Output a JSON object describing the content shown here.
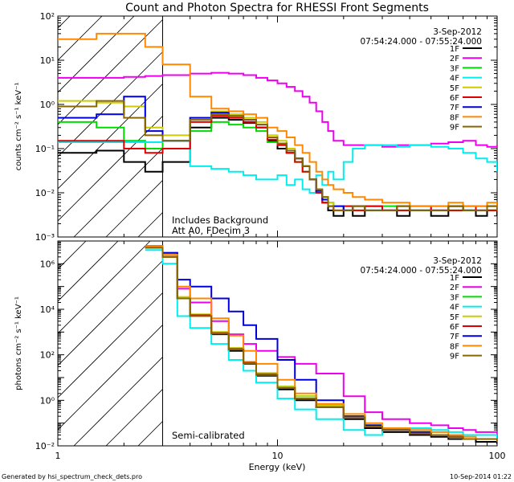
{
  "chart_data": [
    {
      "type": "line",
      "title": "Count and Photon Spectra for RHESSI Front Segments",
      "date": "3-Sep-2012",
      "time_range": "07:54:24.000 - 07:55:24.000",
      "xlabel": "",
      "ylabel": "counts cm⁻² s⁻¹ keV⁻¹",
      "xscale": "log",
      "yscale": "log",
      "xlim": [
        1,
        100
      ],
      "ylim": [
        0.001,
        100
      ],
      "xticks": [
        "1",
        "10",
        "100"
      ],
      "yticks": [
        "10⁻³",
        "10⁻²",
        "10⁻¹",
        "10⁰",
        "10¹",
        "10²"
      ],
      "annotations": [
        "Includes Background",
        "Att A0, FDecim 3"
      ],
      "shaded_region_keV": [
        1,
        3
      ],
      "legend_position": "top-right",
      "series": [
        {
          "name": "1F",
          "color": "#000000",
          "x": [
            1,
            1.5,
            2,
            2.5,
            3,
            4,
            5,
            6,
            7,
            8,
            9,
            10,
            11,
            12,
            13,
            14,
            15,
            16,
            17,
            18,
            20,
            22,
            25,
            30,
            35,
            40,
            50,
            60,
            70,
            80,
            90,
            100
          ],
          "y": [
            0.08,
            0.09,
            0.05,
            0.03,
            0.05,
            0.3,
            0.5,
            0.45,
            0.38,
            0.3,
            0.15,
            0.1,
            0.08,
            0.06,
            0.04,
            0.02,
            0.01,
            0.006,
            0.004,
            0.003,
            0.004,
            0.003,
            0.005,
            0.004,
            0.003,
            0.004,
            0.003,
            0.005,
            0.004,
            0.003,
            0.004,
            0.003
          ]
        },
        {
          "name": "2F",
          "color": "#ee00ee",
          "x": [
            1,
            1.5,
            2,
            2.5,
            3,
            4,
            5,
            6,
            7,
            8,
            9,
            10,
            11,
            12,
            13,
            14,
            15,
            16,
            17,
            18,
            20,
            22,
            25,
            30,
            35,
            40,
            50,
            60,
            70,
            80,
            90,
            100
          ],
          "y": [
            4,
            4,
            4.2,
            4.4,
            4.6,
            5,
            5.2,
            5,
            4.6,
            4,
            3.5,
            3,
            2.5,
            2,
            1.5,
            1.1,
            0.7,
            0.4,
            0.25,
            0.15,
            0.12,
            0.12,
            0.12,
            0.11,
            0.12,
            0.12,
            0.13,
            0.14,
            0.15,
            0.12,
            0.11,
            0.12
          ]
        },
        {
          "name": "3F",
          "color": "#00dd00",
          "x": [
            1,
            1.5,
            2,
            2.5,
            3,
            4,
            5,
            6,
            7,
            8,
            9,
            10,
            11,
            12,
            13,
            14,
            15,
            16,
            17,
            18,
            20,
            22,
            25,
            30,
            35,
            40,
            50,
            60,
            70,
            80,
            90,
            100
          ],
          "y": [
            0.4,
            0.3,
            0.15,
            0.1,
            0.15,
            0.25,
            0.4,
            0.35,
            0.3,
            0.25,
            0.14,
            0.12,
            0.08,
            0.05,
            0.03,
            0.02,
            0.01,
            0.008,
            0.006,
            0.005,
            0.004,
            0.005,
            0.004,
            0.005,
            0.004,
            0.004,
            0.005,
            0.004,
            0.004,
            0.005,
            0.004,
            0.004
          ]
        },
        {
          "name": "4F",
          "color": "#00eeee",
          "x": [
            1,
            1.5,
            2,
            2.5,
            3,
            4,
            5,
            6,
            7,
            8,
            9,
            10,
            11,
            12,
            13,
            14,
            15,
            16,
            17,
            18,
            20,
            22,
            25,
            30,
            35,
            40,
            50,
            60,
            70,
            80,
            90,
            100
          ],
          "y": [
            0.14,
            0.14,
            0.14,
            0.14,
            0.15,
            0.04,
            0.035,
            0.03,
            0.025,
            0.02,
            0.02,
            0.025,
            0.015,
            0.02,
            0.012,
            0.01,
            0.025,
            0.015,
            0.03,
            0.02,
            0.05,
            0.1,
            0.12,
            0.12,
            0.11,
            0.12,
            0.11,
            0.1,
            0.08,
            0.06,
            0.05,
            0.03
          ]
        },
        {
          "name": "5F",
          "color": "#cccc00",
          "x": [
            1,
            1.5,
            2,
            2.5,
            3,
            4,
            5,
            6,
            7,
            8,
            9,
            10,
            11,
            12,
            13,
            14,
            15,
            16,
            17,
            18,
            20,
            22,
            25,
            30,
            35,
            40,
            50,
            60,
            70,
            80,
            90,
            100
          ],
          "y": [
            1.2,
            1.1,
            0.9,
            0.3,
            0.2,
            0.5,
            0.7,
            0.6,
            0.5,
            0.4,
            0.2,
            0.15,
            0.1,
            0.06,
            0.04,
            0.02,
            0.012,
            0.008,
            0.006,
            0.005,
            0.005,
            0.004,
            0.005,
            0.004,
            0.005,
            0.004,
            0.004,
            0.005,
            0.004,
            0.005,
            0.004,
            0.004
          ]
        },
        {
          "name": "6F",
          "color": "#dd0000",
          "x": [
            1,
            1.5,
            2,
            2.5,
            3,
            4,
            5,
            6,
            7,
            8,
            9,
            10,
            11,
            12,
            13,
            14,
            15,
            16,
            17,
            18,
            20,
            22,
            25,
            30,
            35,
            40,
            50,
            60,
            70,
            80,
            90,
            100
          ],
          "y": [
            0.15,
            0.15,
            0.1,
            0.08,
            0.1,
            0.4,
            0.55,
            0.5,
            0.4,
            0.3,
            0.16,
            0.12,
            0.08,
            0.05,
            0.03,
            0.02,
            0.01,
            0.006,
            0.005,
            0.004,
            0.005,
            0.004,
            0.005,
            0.004,
            0.004,
            0.005,
            0.004,
            0.004,
            0.005,
            0.004,
            0.004,
            0.005
          ]
        },
        {
          "name": "7F",
          "color": "#0000dd",
          "x": [
            1,
            1.5,
            2,
            2.5,
            3,
            4,
            5,
            6,
            7,
            8,
            9,
            10,
            11,
            12,
            13,
            14,
            15,
            16,
            17,
            18,
            20,
            22,
            25,
            30,
            35,
            40,
            50,
            60,
            70,
            80,
            90,
            100
          ],
          "y": [
            0.5,
            0.6,
            1.5,
            0.25,
            0.15,
            0.5,
            0.65,
            0.55,
            0.45,
            0.35,
            0.18,
            0.13,
            0.09,
            0.06,
            0.04,
            0.02,
            0.011,
            0.007,
            0.005,
            0.005,
            0.004,
            0.005,
            0.004,
            0.004,
            0.005,
            0.004,
            0.004,
            0.005,
            0.004,
            0.004,
            0.005,
            0.004
          ]
        },
        {
          "name": "8F",
          "color": "#ff8800",
          "x": [
            1,
            1.5,
            2,
            2.5,
            3,
            4,
            5,
            6,
            7,
            8,
            9,
            10,
            11,
            12,
            13,
            14,
            15,
            16,
            17,
            18,
            20,
            22,
            25,
            30,
            35,
            40,
            50,
            60,
            70,
            80,
            90,
            100
          ],
          "y": [
            30,
            40,
            40,
            20,
            8,
            1.5,
            0.8,
            0.7,
            0.6,
            0.5,
            0.3,
            0.25,
            0.18,
            0.12,
            0.08,
            0.05,
            0.03,
            0.02,
            0.015,
            0.012,
            0.01,
            0.008,
            0.007,
            0.006,
            0.006,
            0.005,
            0.005,
            0.006,
            0.005,
            0.005,
            0.006,
            0.005
          ]
        },
        {
          "name": "9F",
          "color": "#886600",
          "x": [
            1,
            1.5,
            2,
            2.5,
            3,
            4,
            5,
            6,
            7,
            8,
            9,
            10,
            11,
            12,
            13,
            14,
            15,
            16,
            17,
            18,
            20,
            22,
            25,
            30,
            35,
            40,
            50,
            60,
            70,
            80,
            90,
            100
          ],
          "y": [
            0.9,
            1.2,
            0.5,
            0.2,
            0.15,
            0.45,
            0.6,
            0.55,
            0.45,
            0.35,
            0.18,
            0.13,
            0.09,
            0.06,
            0.04,
            0.02,
            0.012,
            0.008,
            0.005,
            0.004,
            0.004,
            0.005,
            0.004,
            0.004,
            0.005,
            0.004,
            0.004,
            0.005,
            0.004,
            0.004,
            0.005,
            0.004
          ]
        }
      ]
    },
    {
      "type": "line",
      "date": "3-Sep-2012",
      "time_range": "07:54:24.000 - 07:55:24.000",
      "xlabel": "Energy (keV)",
      "ylabel": "photons cm⁻² s⁻¹ keV⁻¹",
      "xscale": "log",
      "yscale": "log",
      "xlim": [
        1,
        100
      ],
      "ylim": [
        0.01,
        10000000
      ],
      "xticks": [
        "1",
        "10",
        "100"
      ],
      "yticks": [
        "10⁻²",
        "10⁰",
        "10²",
        "10⁴",
        "10⁶"
      ],
      "annotations": [
        "Semi-calibrated"
      ],
      "shaded_region_keV": [
        1,
        3
      ],
      "legend_position": "top-right",
      "series": [
        {
          "name": "1F",
          "color": "#000000",
          "x": [
            2.5,
            3,
            3.5,
            4,
            5,
            6,
            7,
            8,
            10,
            12,
            15,
            20,
            25,
            30,
            40,
            50,
            60,
            70,
            80,
            100
          ],
          "y": [
            5000000,
            2000000,
            30000,
            5000,
            800,
            150,
            40,
            12,
            3,
            1,
            0.5,
            0.15,
            0.06,
            0.04,
            0.03,
            0.025,
            0.02,
            0.02,
            0.015,
            0.012
          ]
        },
        {
          "name": "2F",
          "color": "#ee00ee",
          "x": [
            2.5,
            3,
            3.5,
            4,
            5,
            6,
            7,
            8,
            10,
            12,
            15,
            20,
            25,
            30,
            40,
            50,
            60,
            70,
            80,
            100
          ],
          "y": [
            6000000,
            3000000,
            80000,
            20000,
            3000,
            800,
            300,
            150,
            80,
            40,
            15,
            1.5,
            0.3,
            0.15,
            0.1,
            0.08,
            0.06,
            0.05,
            0.04,
            0.03
          ]
        },
        {
          "name": "3F",
          "color": "#00dd00",
          "x": [
            2.5,
            3,
            3.5,
            4,
            5,
            6,
            7,
            8,
            10,
            12,
            15,
            20,
            25,
            30,
            40,
            50,
            60,
            70,
            80,
            100
          ],
          "y": [
            5000000,
            2000000,
            30000,
            5000,
            900,
            180,
            45,
            15,
            4,
            1.5,
            0.6,
            0.2,
            0.08,
            0.05,
            0.04,
            0.03,
            0.025,
            0.02,
            0.02,
            0.015
          ]
        },
        {
          "name": "4F",
          "color": "#00eeee",
          "x": [
            2.5,
            3,
            3.5,
            4,
            5,
            6,
            7,
            8,
            10,
            12,
            15,
            20,
            25,
            30,
            40,
            50,
            60,
            70,
            80,
            100
          ],
          "y": [
            4000000,
            1000000,
            5000,
            1500,
            300,
            60,
            20,
            6,
            1.2,
            0.4,
            0.15,
            0.05,
            0.03,
            0.05,
            0.06,
            0.05,
            0.04,
            0.03,
            0.03,
            0.02
          ]
        },
        {
          "name": "5F",
          "color": "#cccc00",
          "x": [
            2.5,
            3,
            3.5,
            4,
            5,
            6,
            7,
            8,
            10,
            12,
            15,
            20,
            25,
            30,
            40,
            50,
            60,
            70,
            80,
            100
          ],
          "y": [
            5000000,
            2000000,
            35000,
            6000,
            1000,
            200,
            50,
            16,
            4,
            1.5,
            0.6,
            0.2,
            0.08,
            0.05,
            0.04,
            0.03,
            0.025,
            0.02,
            0.02,
            0.015
          ]
        },
        {
          "name": "6F",
          "color": "#dd0000",
          "x": [
            2.5,
            3,
            3.5,
            4,
            5,
            6,
            7,
            8,
            10,
            12,
            15,
            20,
            25,
            30,
            40,
            50,
            60,
            70,
            80,
            100
          ],
          "y": [
            5000000,
            2000000,
            30000,
            5500,
            900,
            180,
            45,
            14,
            3.5,
            1.2,
            0.5,
            0.18,
            0.07,
            0.05,
            0.035,
            0.03,
            0.025,
            0.02,
            0.02,
            0.015
          ]
        },
        {
          "name": "7F",
          "color": "#0000dd",
          "x": [
            2.5,
            3,
            3.5,
            4,
            5,
            6,
            7,
            8,
            10,
            12,
            15,
            20,
            25,
            30,
            40,
            50,
            60,
            70,
            80,
            100
          ],
          "y": [
            6000000,
            3000000,
            200000,
            100000,
            30000,
            8000,
            2000,
            500,
            60,
            8,
            1,
            0.2,
            0.08,
            0.05,
            0.04,
            0.03,
            0.025,
            0.02,
            0.02,
            0.015
          ]
        },
        {
          "name": "8F",
          "color": "#ff8800",
          "x": [
            2.5,
            3,
            3.5,
            4,
            5,
            6,
            7,
            8,
            10,
            12,
            15,
            20,
            25,
            30,
            40,
            50,
            60,
            70,
            80,
            100
          ],
          "y": [
            6000000,
            2500000,
            100000,
            30000,
            4000,
            700,
            150,
            40,
            8,
            2,
            0.7,
            0.25,
            0.1,
            0.06,
            0.05,
            0.04,
            0.03,
            0.025,
            0.02,
            0.02
          ]
        },
        {
          "name": "9F",
          "color": "#886600",
          "x": [
            2.5,
            3,
            3.5,
            4,
            5,
            6,
            7,
            8,
            10,
            12,
            15,
            20,
            25,
            30,
            40,
            50,
            60,
            70,
            80,
            100
          ],
          "y": [
            5000000,
            2000000,
            30000,
            5000,
            850,
            170,
            42,
            13,
            3.5,
            1.2,
            0.5,
            0.18,
            0.07,
            0.05,
            0.035,
            0.03,
            0.025,
            0.02,
            0.02,
            0.015
          ]
        }
      ]
    }
  ],
  "footer": {
    "left": "Generated by hsi_spectrum_check_dets.pro",
    "right": "10-Sep-2014 01:22"
  }
}
